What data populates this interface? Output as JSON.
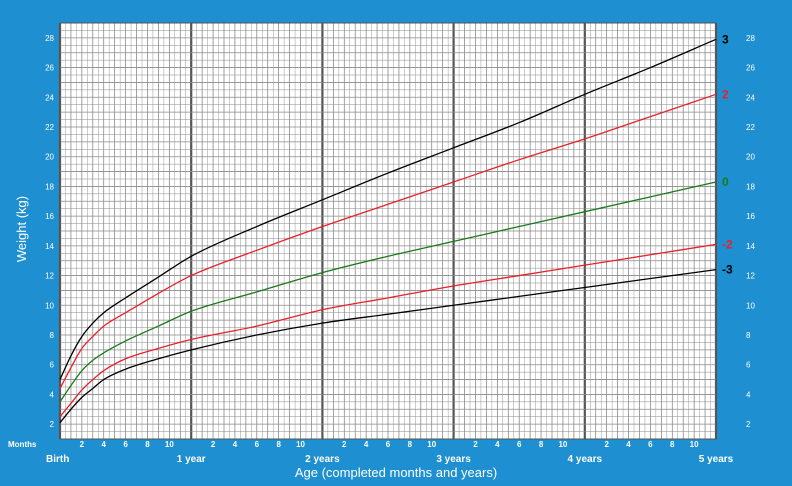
{
  "chart_data": {
    "type": "line",
    "title": "",
    "xlabel": "Age (completed months and years)",
    "ylabel": "Weight (kg)",
    "xlim": [
      0,
      60
    ],
    "ylim": [
      1,
      29
    ],
    "grid": true,
    "months_label": "Months",
    "y_ticks": [
      2,
      4,
      6,
      8,
      10,
      12,
      14,
      16,
      18,
      20,
      22,
      24,
      26,
      28
    ],
    "x_major_ticks": [
      {
        "x": 0,
        "label": "Birth"
      },
      {
        "x": 12,
        "label": "1 year"
      },
      {
        "x": 24,
        "label": "2 years"
      },
      {
        "x": 36,
        "label": "3 years"
      },
      {
        "x": 48,
        "label": "4 years"
      },
      {
        "x": 60,
        "label": "5 years"
      }
    ],
    "x_minor_tick_labels": [
      "2",
      "4",
      "6",
      "8",
      "10"
    ],
    "x": [
      0,
      1,
      2,
      3,
      4,
      6,
      9,
      12,
      18,
      24,
      30,
      36,
      42,
      48,
      54,
      60
    ],
    "series": [
      {
        "name": "3",
        "color": "#000000",
        "values": [
          5.0,
          6.6,
          7.9,
          8.8,
          9.5,
          10.5,
          11.9,
          13.3,
          15.3,
          17.1,
          18.9,
          20.6,
          22.3,
          24.2,
          26.0,
          27.9
        ]
      },
      {
        "name": "2",
        "color": "#e8202a",
        "values": [
          4.4,
          5.8,
          7.1,
          7.9,
          8.6,
          9.5,
          10.8,
          12.0,
          13.7,
          15.3,
          16.8,
          18.3,
          19.8,
          21.2,
          22.7,
          24.2
        ]
      },
      {
        "name": "0",
        "color": "#1a7a1a",
        "values": [
          3.5,
          4.6,
          5.6,
          6.3,
          6.8,
          7.6,
          8.6,
          9.6,
          10.9,
          12.2,
          13.3,
          14.3,
          15.3,
          16.3,
          17.3,
          18.3
        ]
      },
      {
        "name": "-2",
        "color": "#e8202a",
        "values": [
          2.5,
          3.4,
          4.3,
          5.0,
          5.6,
          6.4,
          7.1,
          7.7,
          8.6,
          9.7,
          10.5,
          11.3,
          12.0,
          12.7,
          13.4,
          14.1
        ]
      },
      {
        "name": "-3",
        "color": "#000000",
        "values": [
          2.1,
          3.0,
          3.8,
          4.4,
          5.0,
          5.7,
          6.4,
          7.0,
          8.0,
          8.8,
          9.4,
          10.0,
          10.6,
          11.2,
          11.8,
          12.4
        ]
      }
    ]
  }
}
